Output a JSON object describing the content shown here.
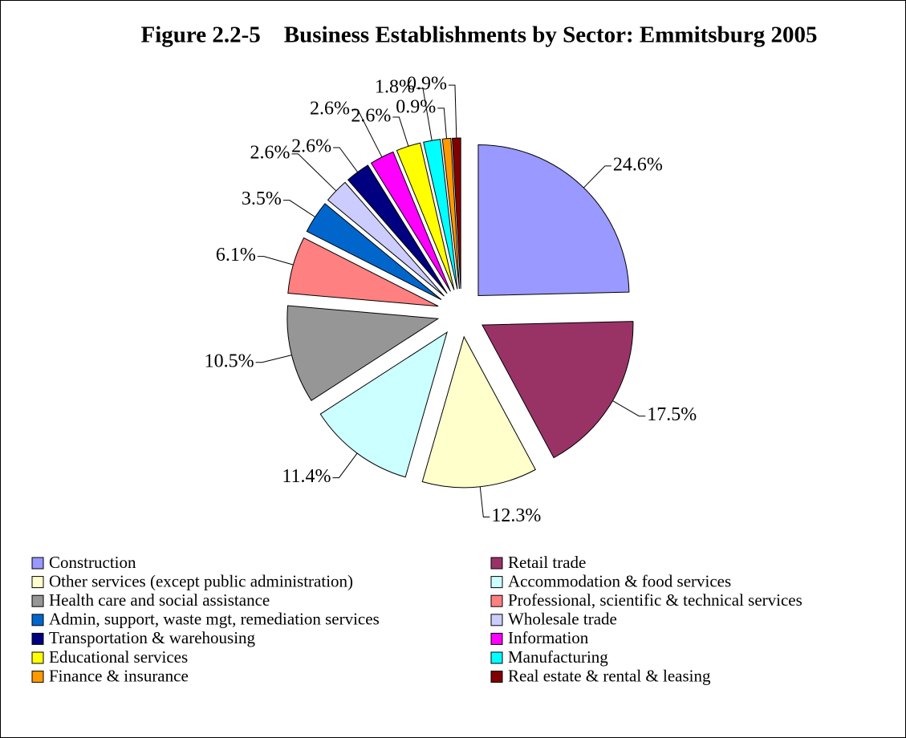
{
  "chart_data": {
    "type": "pie",
    "title": "Figure 2.2-5    Business Establishments by Sector: Emmitsburg 2005",
    "categories": [
      "Construction",
      "Retail trade",
      "Other services (except public administration)",
      "Accommodation & food services",
      "Health care and social assistance",
      "Professional, scientific & technical services",
      "Admin, support, waste mgt, remediation services",
      "Wholesale trade",
      "Transportation & warehousing",
      "Information",
      "Educational services",
      "Manufacturing",
      "Finance & insurance",
      "Real estate & rental & leasing"
    ],
    "values": [
      24.6,
      17.5,
      12.3,
      11.4,
      10.5,
      6.1,
      3.5,
      2.6,
      2.6,
      2.6,
      2.6,
      1.8,
      0.9,
      0.9
    ],
    "value_labels": [
      "24.6%",
      "17.5%",
      "12.3%",
      "11.4%",
      "10.5%",
      "6.1%",
      "3.5%",
      "2.6%",
      "2.6%",
      "2.6%",
      "2.6%",
      "1.8%",
      "0.9%",
      "0.9%"
    ],
    "colors": [
      "#9999ff",
      "#993366",
      "#ffffcc",
      "#ccffff",
      "#969696",
      "#ff8080",
      "#0066cc",
      "#ccccff",
      "#000080",
      "#ff00ff",
      "#ffff00",
      "#00ffff",
      "#ff9900",
      "#800000"
    ],
    "legend": "bottom"
  }
}
